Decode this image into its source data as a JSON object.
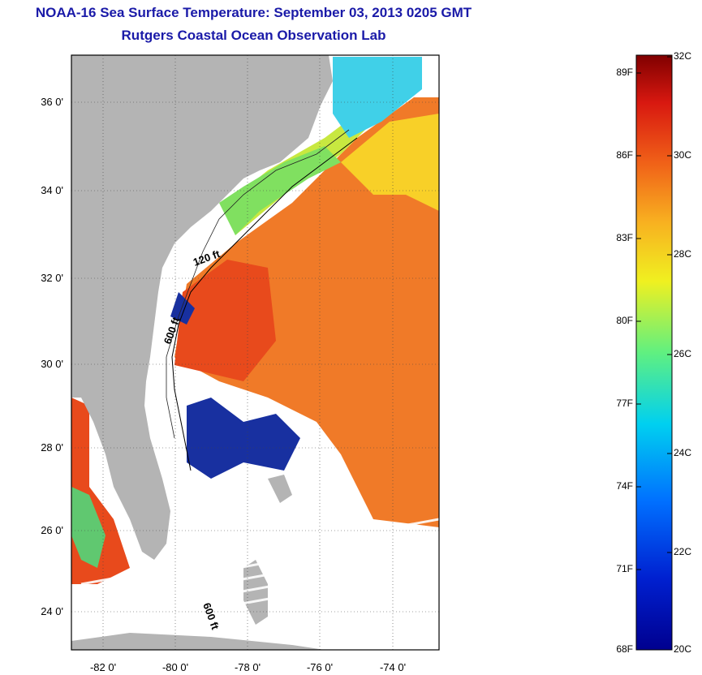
{
  "title": {
    "line1": "NOAA-16 Sea Surface Temperature:  September 03, 2013 0205 GMT",
    "line2": "Rutgers Coastal Ocean Observation Lab"
  },
  "map": {
    "y_ticks": [
      "36 0'",
      "34 0'",
      "32 0'",
      "30 0'",
      "28 0'",
      "26 0'",
      "24 0'"
    ],
    "x_ticks": [
      "-82 0'",
      "-80 0'",
      "-78 0'",
      "-76 0'",
      "-74 0'"
    ],
    "contour_labels": [
      "120 ft",
      "600 ft",
      "600 ft"
    ],
    "colors": {
      "land": "#b4b4b4",
      "cloud": "#ffffff",
      "warm": "#f07020",
      "hot": "#e83818",
      "mild": "#f8b020",
      "yellow": "#f8f020",
      "green": "#80e860",
      "cyan": "#40d0f0",
      "cold": "#102090"
    }
  },
  "colorbar": {
    "fahrenheit_labels": [
      "89F",
      "86F",
      "83F",
      "80F",
      "77F",
      "74F",
      "71F",
      "68F"
    ],
    "celsius_labels": [
      "32C",
      "30C",
      "28C",
      "26C",
      "24C",
      "22C",
      "20C"
    ]
  }
}
